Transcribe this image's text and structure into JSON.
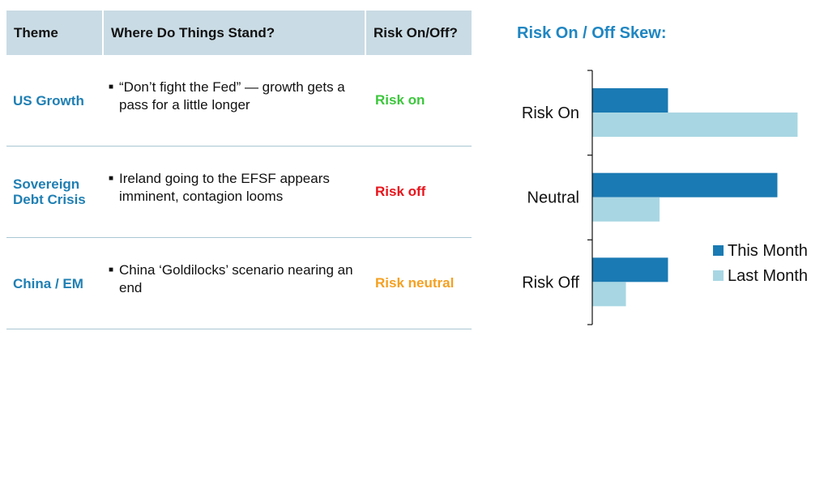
{
  "table": {
    "headers": [
      "Theme",
      "Where Do Things Stand?",
      "Risk On/Off?"
    ],
    "rows": [
      {
        "theme": "US Growth",
        "bullet": "“Don’t fight the Fed” — growth gets a pass for a little longer",
        "status": "Risk on",
        "status_color": "#3cc73c"
      },
      {
        "theme": "Sovereign Debt Crisis",
        "bullet": "Ireland going to the EFSF appears imminent, contagion looms",
        "status": "Risk off",
        "status_color": "#e8131b"
      },
      {
        "theme": "China / EM",
        "bullet": "China ‘Goldilocks’ scenario nearing an end",
        "status": "Risk neutral",
        "status_color": "#f5a020"
      }
    ]
  },
  "chart_title": "Risk On / Off Skew:",
  "chart_data": {
    "type": "bar",
    "orientation": "horizontal",
    "categories": [
      "Risk On",
      "Neutral",
      "Risk Off"
    ],
    "series": [
      {
        "name": "This Month",
        "values": [
          4.5,
          11,
          4.5
        ],
        "color": "#1a7ab3"
      },
      {
        "name": "Last Month",
        "values": [
          12.2,
          4,
          2
        ],
        "color": "#a8d6e3"
      }
    ],
    "xlim": [
      0,
      13
    ],
    "legend": "right"
  }
}
